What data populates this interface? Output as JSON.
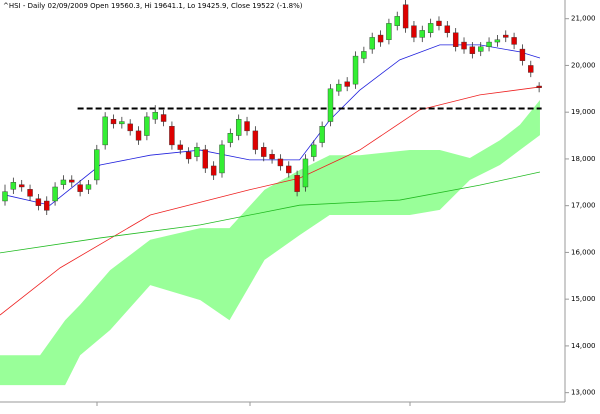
{
  "chart_data": {
    "type": "candlestick",
    "title": "^HSI - Daily 02/09/2009 Open 19560.3, Hi 19641.1, Lo 19425.9, Close 19522 (-1.8%)",
    "up_color": "#33ee33",
    "down_color": "#dd0000",
    "open": [
      17100,
      17350,
      17450,
      17350,
      17150,
      17100,
      17100,
      17450,
      17550,
      17450,
      17350,
      17550,
      18300,
      18850,
      18750,
      18750,
      18600,
      18500,
      18850,
      18950,
      18700,
      18300,
      18150,
      18050,
      18200,
      17850,
      17700,
      18350,
      18500,
      18800,
      18600,
      18250,
      18100,
      18000,
      17850,
      17650,
      17400,
      18050,
      18350,
      18800,
      19450,
      19650,
      19600,
      20150,
      20350,
      20650,
      20550,
      20850,
      21300,
      20850,
      20600,
      20700,
      20950,
      20850,
      20700,
      20500,
      20400,
      20300,
      20400,
      20500,
      20650,
      20600,
      20350,
      20000,
      19560.3
    ],
    "high": [
      17450,
      17600,
      17550,
      17450,
      17250,
      17200,
      17500,
      17650,
      17650,
      17550,
      17550,
      18300,
      19000,
      18950,
      18900,
      18850,
      18700,
      19000,
      19150,
      19050,
      18800,
      18400,
      18250,
      18350,
      18300,
      17950,
      18400,
      18650,
      18950,
      18900,
      18700,
      18350,
      18200,
      18100,
      17950,
      17750,
      18100,
      18400,
      18800,
      19600,
      19700,
      19750,
      20300,
      20400,
      20700,
      20750,
      21000,
      21150,
      21400,
      20950,
      20850,
      21000,
      21050,
      20950,
      20800,
      20600,
      20500,
      20500,
      20600,
      20650,
      20750,
      20700,
      20450,
      20100,
      19641.1
    ],
    "low": [
      17000,
      17250,
      17300,
      17100,
      16900,
      16800,
      17000,
      17350,
      17400,
      17200,
      17250,
      17450,
      18200,
      18650,
      18650,
      18500,
      18300,
      18400,
      18750,
      18700,
      18200,
      18100,
      17900,
      17950,
      17700,
      17550,
      17600,
      18250,
      18400,
      18500,
      18100,
      17950,
      17900,
      17750,
      17600,
      17200,
      17300,
      17950,
      18250,
      18700,
      19350,
      19450,
      19500,
      20050,
      20250,
      20400,
      20450,
      20750,
      20700,
      20500,
      20500,
      20600,
      20750,
      20600,
      20300,
      20250,
      20150,
      20200,
      20300,
      20400,
      20500,
      20350,
      20000,
      19750,
      19425.9
    ],
    "close": [
      17300,
      17500,
      17400,
      17200,
      17000,
      16900,
      17400,
      17550,
      17500,
      17300,
      17450,
      18200,
      18900,
      18750,
      18800,
      18600,
      18400,
      18900,
      19000,
      18800,
      18300,
      18200,
      18000,
      18250,
      17800,
      17650,
      18300,
      18550,
      18850,
      18600,
      18200,
      18050,
      18000,
      17850,
      17700,
      17300,
      18000,
      18300,
      18700,
      19500,
      19600,
      19550,
      20200,
      20300,
      20600,
      20500,
      20900,
      21050,
      20800,
      20600,
      20750,
      20900,
      20850,
      20700,
      20400,
      20350,
      20250,
      20400,
      20500,
      20550,
      20600,
      20450,
      20100,
      19850,
      19522
    ],
    "xlim": [
      -0.6,
      67.1
    ],
    "ylim": [
      12800,
      21400
    ],
    "yticks": [
      {
        "value": 21000,
        "label": "21,000"
      },
      {
        "value": 20000,
        "label": "20,000"
      },
      {
        "value": 19000,
        "label": "19,000"
      },
      {
        "value": 18000,
        "label": "18,000"
      },
      {
        "value": 17000,
        "label": "17,000"
      },
      {
        "value": 16000,
        "label": "16,000"
      },
      {
        "value": 15000,
        "label": "15,000"
      },
      {
        "value": 14000,
        "label": "14,000"
      },
      {
        "value": 13000,
        "label": "13,000"
      }
    ],
    "cloud": {
      "color": "#99ff99",
      "x": [
        -0.6,
        4.2,
        7.2,
        9,
        12.6,
        17.4,
        23.4,
        26.9,
        31.1,
        35.3,
        38.9,
        42.5,
        48.5,
        52.1,
        55.7,
        59.3,
        61.7,
        64.1
      ],
      "upper": [
        13800,
        13800,
        14550,
        14880,
        15620,
        16270,
        16520,
        16520,
        17340,
        17760,
        18080,
        18080,
        18190,
        18190,
        18020,
        18400,
        18730,
        19260
      ],
      "lower": [
        13160,
        13160,
        13160,
        13800,
        14340,
        15300,
        14980,
        14550,
        15840,
        16370,
        16800,
        16800,
        16800,
        16910,
        17550,
        17870,
        18190,
        18510
      ]
    },
    "overlays": [
      {
        "color": "#ee2222",
        "x": [
          -0.6,
          6.6,
          17.4,
          29.3,
          35.3,
          42.5,
          49.7,
          56.9,
          64.1
        ],
        "values": [
          14660,
          15670,
          16800,
          17340,
          17590,
          18190,
          19050,
          19370,
          19540
        ]
      },
      {
        "color": "#22bb22",
        "x": [
          -0.6,
          11.4,
          23.4,
          35.3,
          47.3,
          56.9,
          64.1
        ],
        "values": [
          15990,
          16310,
          16590,
          17010,
          17120,
          17440,
          17720
        ]
      },
      {
        "color": "#2222dd",
        "x": [
          0,
          5.4,
          11.4,
          17.4,
          23.4,
          29.3,
          35.3,
          38.9,
          42.5,
          47.3,
          52.1,
          56.9,
          61.7,
          64.1
        ],
        "values": [
          17230,
          17010,
          17870,
          18080,
          18190,
          17980,
          17980,
          18830,
          19470,
          20120,
          20440,
          20440,
          20290,
          20160
        ]
      }
    ],
    "reference_line": {
      "value": 19080,
      "color": "#000000",
      "x": [
        8.7,
        64.3
      ]
    }
  }
}
